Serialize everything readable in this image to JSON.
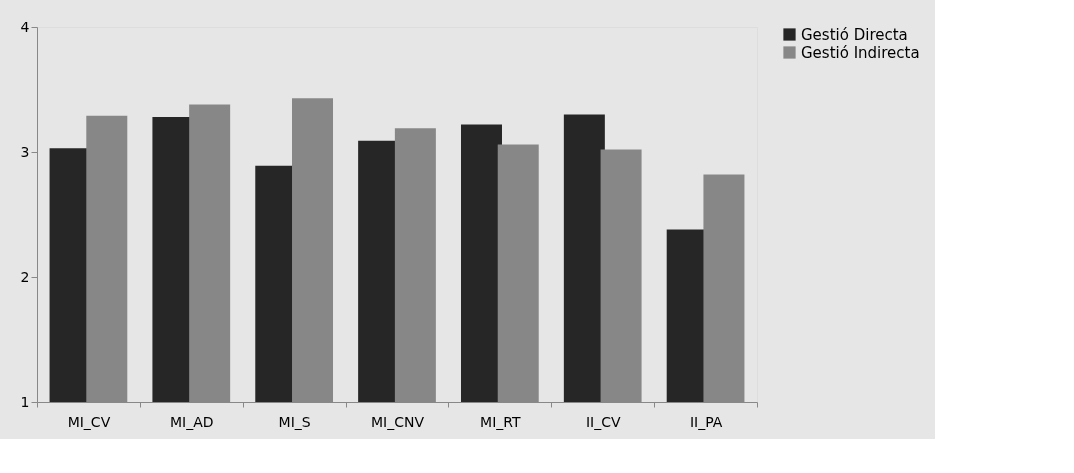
{
  "chart_data": {
    "type": "bar",
    "categories": [
      "MI_CV",
      "MI_AD",
      "MI_S",
      "MI_CNV",
      "MI_RT",
      "II_CV",
      "II_PA"
    ],
    "series": [
      {
        "name": "Gestió Directa",
        "color": "#262626",
        "values": [
          3.03,
          3.28,
          2.89,
          3.09,
          3.22,
          3.3,
          2.38
        ]
      },
      {
        "name": "Gestió Indirecta",
        "color": "#878787",
        "values": [
          3.29,
          3.38,
          3.43,
          3.19,
          3.06,
          3.02,
          2.82
        ]
      }
    ],
    "ylim": [
      1,
      4
    ],
    "yticks": [
      1,
      2,
      3,
      4
    ],
    "legend": "right"
  }
}
